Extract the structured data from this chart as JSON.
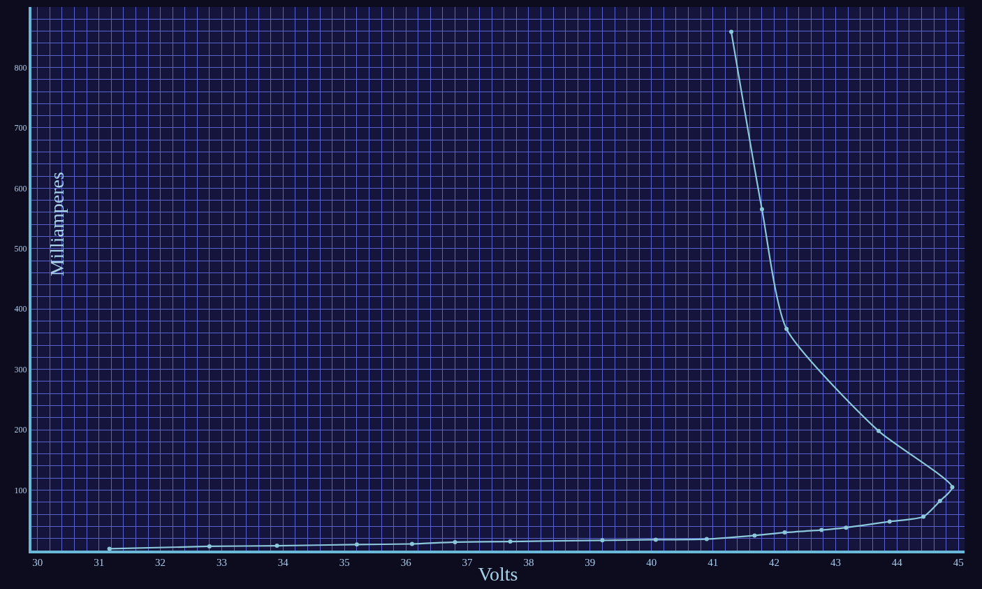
{
  "chart_data": {
    "type": "line",
    "xlabel": "Volts",
    "ylabel": "Milliamperes",
    "x": [
      31.17,
      32.8,
      33.9,
      35.2,
      36.1,
      36.8,
      37.7,
      39.2,
      40.07,
      40.9,
      41.68,
      42.17,
      42.77,
      43.17,
      43.88,
      44.43,
      44.7,
      44.9,
      43.7,
      42.2,
      41.8,
      41.3
    ],
    "series": [
      {
        "color": "#8cc8dc",
        "values": [
          3,
          7,
          8,
          10,
          11,
          14,
          15,
          17,
          18,
          19,
          25,
          30,
          34,
          38,
          48,
          56,
          82,
          105,
          198,
          367,
          565,
          859
        ]
      }
    ],
    "xlim": [
      29.9,
      45.1
    ],
    "xticks": [
      30,
      {
        "value": 30.2,
        "label": null
      },
      {
        "value": 30.4,
        "label": null
      },
      {
        "value": 30.6,
        "label": null
      },
      {
        "value": 30.8,
        "label": null
      },
      31,
      {
        "value": 31.2,
        "label": null
      },
      {
        "value": 31.4,
        "label": null
      },
      {
        "value": 31.6,
        "label": null
      },
      {
        "value": 31.8,
        "label": null
      },
      32,
      {
        "value": 32.2,
        "label": null
      },
      {
        "value": 32.4,
        "label": null
      },
      {
        "value": 32.6,
        "label": null
      },
      {
        "value": 32.8,
        "label": null
      },
      33,
      {
        "value": 33.2,
        "label": null
      },
      {
        "value": 33.4,
        "label": null
      },
      {
        "value": 33.6,
        "label": null
      },
      {
        "value": 33.8,
        "label": null
      },
      34,
      {
        "value": 34.2,
        "label": null
      },
      {
        "value": 34.4,
        "label": null
      },
      {
        "value": 34.6,
        "label": null
      },
      {
        "value": 34.8,
        "label": null
      },
      35,
      {
        "value": 35.2,
        "label": null
      },
      {
        "value": 35.4,
        "label": null
      },
      {
        "value": 35.6,
        "label": null
      },
      {
        "value": 35.8,
        "label": null
      },
      36,
      {
        "value": 36.2,
        "label": null
      },
      {
        "value": 36.4,
        "label": null
      },
      {
        "value": 36.6,
        "label": null
      },
      {
        "value": 36.8,
        "label": null
      },
      37,
      {
        "value": 37.2,
        "label": null
      },
      {
        "value": 37.4,
        "label": null
      },
      {
        "value": 37.6,
        "label": null
      },
      {
        "value": 37.8,
        "label": null
      },
      38,
      {
        "value": 38.2,
        "label": null
      },
      {
        "value": 38.4,
        "label": null
      },
      {
        "value": 38.6,
        "label": null
      },
      {
        "value": 38.8,
        "label": null
      },
      39,
      {
        "value": 39.2,
        "label": null
      },
      {
        "value": 39.4,
        "label": null
      },
      {
        "value": 39.6,
        "label": null
      },
      {
        "value": 39.8,
        "label": null
      },
      40,
      {
        "value": 40.2,
        "label": null
      },
      {
        "value": 40.4,
        "label": null
      },
      {
        "value": 40.6,
        "label": null
      },
      {
        "value": 40.8,
        "label": null
      },
      41,
      {
        "value": 41.2,
        "label": null
      },
      {
        "value": 41.4,
        "label": null
      },
      {
        "value": 41.6,
        "label": null
      },
      {
        "value": 41.8,
        "label": null
      },
      42,
      {
        "value": 42.2,
        "label": null
      },
      {
        "value": 42.4,
        "label": null
      },
      {
        "value": 42.6,
        "label": null
      },
      {
        "value": 42.8,
        "label": null
      },
      43,
      {
        "value": 43.2,
        "label": null
      },
      {
        "value": 43.4,
        "label": null
      },
      {
        "value": 43.6,
        "label": null
      },
      {
        "value": 43.8,
        "label": null
      },
      44,
      {
        "value": 44.2,
        "label": null
      },
      {
        "value": 44.4,
        "label": null
      },
      {
        "value": 44.6,
        "label": null
      },
      {
        "value": 44.8,
        "label": null
      },
      45
    ],
    "ylim": [
      0,
      900
    ],
    "yticks": [
      {
        "value": 20,
        "label": null
      },
      {
        "value": 40,
        "label": null
      },
      {
        "value": 60,
        "label": null
      },
      {
        "value": 80,
        "label": null
      },
      100,
      {
        "value": 120,
        "label": null
      },
      {
        "value": 140,
        "label": null
      },
      {
        "value": 160,
        "label": null
      },
      {
        "value": 180,
        "label": null
      },
      200,
      {
        "value": 220,
        "label": null
      },
      {
        "value": 240,
        "label": null
      },
      {
        "value": 260,
        "label": null
      },
      {
        "value": 280,
        "label": null
      },
      300,
      {
        "value": 320,
        "label": null
      },
      {
        "value": 340,
        "label": null
      },
      {
        "value": 360,
        "label": null
      },
      {
        "value": 380,
        "label": null
      },
      400,
      {
        "value": 420,
        "label": null
      },
      {
        "value": 440,
        "label": null
      },
      {
        "value": 460,
        "label": null
      },
      {
        "value": 480,
        "label": null
      },
      500,
      {
        "value": 520,
        "label": null
      },
      {
        "value": 540,
        "label": null
      },
      {
        "value": 560,
        "label": null
      },
      {
        "value": 580,
        "label": null
      },
      600,
      {
        "value": 620,
        "label": null
      },
      {
        "value": 640,
        "label": null
      },
      {
        "value": 660,
        "label": null
      },
      {
        "value": 680,
        "label": null
      },
      700,
      {
        "value": 720,
        "label": null
      },
      {
        "value": 740,
        "label": null
      },
      {
        "value": 760,
        "label": null
      },
      {
        "value": 780,
        "label": null
      },
      800,
      {
        "value": 820,
        "label": null
      },
      {
        "value": 840,
        "label": null
      },
      {
        "value": 860,
        "label": null
      },
      {
        "value": 880,
        "label": null
      }
    ],
    "grid": true,
    "marker": "circle",
    "line_style": "solid",
    "legend": false
  }
}
